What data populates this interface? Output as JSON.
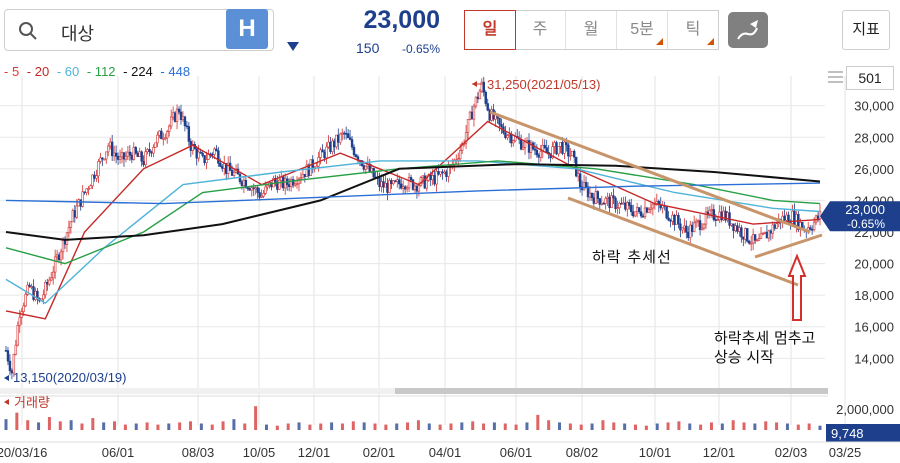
{
  "search": {
    "value": "대상",
    "badge": "H"
  },
  "quote": {
    "price": "23,000",
    "change": "150",
    "change_pct": "-0.65%"
  },
  "tabs": [
    {
      "label": "일",
      "active": true,
      "corner": false
    },
    {
      "label": "주",
      "active": false,
      "corner": false
    },
    {
      "label": "월",
      "active": false,
      "corner": false
    },
    {
      "label": "5분",
      "active": false,
      "corner": true
    },
    {
      "label": "틱",
      "active": false,
      "corner": true
    }
  ],
  "indicator_button": "지표",
  "count": "501",
  "legend": {
    "items": [
      {
        "label": "5",
        "color": "#e53935"
      },
      {
        "label": "20",
        "color": "#c62828"
      },
      {
        "label": "60",
        "color": "#4fb3d9"
      },
      {
        "label": "112",
        "color": "#27a046"
      },
      {
        "label": "224",
        "color": "#111111"
      },
      {
        "label": "448",
        "color": "#2a6fd6"
      }
    ]
  },
  "colors": {
    "up": "#d32f2f",
    "down": "#1d3f8c",
    "trendline": "#c8956a",
    "arrow": "#d32f2f"
  },
  "volume_label": "거래량",
  "chart_data": {
    "type": "candlestick",
    "x_ticks": [
      "20/03/16",
      "06/01",
      "08/03",
      "10/05",
      "12/01",
      "02/01",
      "04/01",
      "06/01",
      "08/02",
      "10/01",
      "12/01",
      "02/03",
      "03/25"
    ],
    "ylim": [
      12500,
      31500
    ],
    "y_ticks": [
      14000,
      16000,
      18000,
      20000,
      22000,
      24000,
      26000,
      28000,
      30000
    ],
    "y_tick_labels": [
      "14,000",
      "16,000",
      "18,000",
      "20,000",
      "22,000",
      "24,000",
      "26,000",
      "28,000",
      "30,000"
    ],
    "price_path": [
      [
        0,
        14500
      ],
      [
        3,
        13150
      ],
      [
        7,
        17000
      ],
      [
        12,
        18500
      ],
      [
        17,
        17500
      ],
      [
        22,
        19000
      ],
      [
        28,
        21000
      ],
      [
        34,
        23000
      ],
      [
        40,
        24500
      ],
      [
        46,
        26000
      ],
      [
        52,
        27500
      ],
      [
        58,
        26500
      ],
      [
        64,
        27000
      ],
      [
        70,
        26500
      ],
      [
        76,
        27800
      ],
      [
        82,
        28500
      ],
      [
        88,
        29800
      ],
      [
        94,
        27500
      ],
      [
        100,
        26500
      ],
      [
        106,
        27200
      ],
      [
        112,
        26000
      ],
      [
        118,
        25500
      ],
      [
        124,
        25000
      ],
      [
        130,
        24300
      ],
      [
        136,
        25200
      ],
      [
        142,
        25000
      ],
      [
        148,
        25500
      ],
      [
        154,
        26000
      ],
      [
        160,
        26800
      ],
      [
        166,
        27500
      ],
      [
        172,
        28200
      ],
      [
        178,
        27000
      ],
      [
        184,
        26000
      ],
      [
        190,
        25000
      ],
      [
        196,
        24800
      ],
      [
        202,
        25200
      ],
      [
        208,
        25000
      ],
      [
        214,
        25200
      ],
      [
        220,
        25500
      ],
      [
        226,
        26000
      ],
      [
        232,
        27500
      ],
      [
        238,
        30000
      ],
      [
        242,
        31250
      ],
      [
        246,
        29500
      ],
      [
        252,
        28500
      ],
      [
        258,
        28000
      ],
      [
        264,
        27500
      ],
      [
        270,
        27200
      ],
      [
        276,
        27000
      ],
      [
        282,
        27500
      ],
      [
        288,
        26800
      ],
      [
        292,
        25000
      ],
      [
        298,
        24300
      ],
      [
        304,
        24000
      ],
      [
        310,
        23800
      ],
      [
        316,
        23500
      ],
      [
        322,
        23200
      ],
      [
        328,
        23800
      ],
      [
        334,
        23500
      ],
      [
        340,
        22800
      ],
      [
        346,
        22000
      ],
      [
        352,
        22500
      ],
      [
        358,
        23000
      ],
      [
        364,
        23200
      ],
      [
        370,
        22500
      ],
      [
        376,
        21800
      ],
      [
        382,
        21200
      ],
      [
        388,
        22000
      ],
      [
        394,
        22800
      ],
      [
        400,
        23000
      ],
      [
        406,
        22200
      ],
      [
        410,
        22500
      ],
      [
        414,
        23000
      ]
    ],
    "ma_lines": [
      {
        "name": "20",
        "color": "#c62828",
        "points": [
          [
            0,
            17000
          ],
          [
            20,
            16500
          ],
          [
            40,
            22000
          ],
          [
            70,
            26000
          ],
          [
            95,
            27500
          ],
          [
            130,
            25000
          ],
          [
            170,
            27000
          ],
          [
            210,
            25000
          ],
          [
            245,
            29000
          ],
          [
            290,
            26000
          ],
          [
            330,
            23800
          ],
          [
            380,
            22500
          ],
          [
            414,
            22800
          ]
        ]
      },
      {
        "name": "60",
        "color": "#4fb3d9",
        "points": [
          [
            0,
            19000
          ],
          [
            20,
            17500
          ],
          [
            50,
            21000
          ],
          [
            90,
            25000
          ],
          [
            140,
            25800
          ],
          [
            190,
            26500
          ],
          [
            240,
            26500
          ],
          [
            290,
            26000
          ],
          [
            340,
            24500
          ],
          [
            390,
            23500
          ],
          [
            414,
            23300
          ]
        ]
      },
      {
        "name": "112",
        "color": "#27a046",
        "points": [
          [
            0,
            21000
          ],
          [
            30,
            20000
          ],
          [
            70,
            22000
          ],
          [
            100,
            24500
          ],
          [
            150,
            25300
          ],
          [
            200,
            26000
          ],
          [
            250,
            26500
          ],
          [
            300,
            26000
          ],
          [
            350,
            25000
          ],
          [
            390,
            24000
          ],
          [
            414,
            23800
          ]
        ]
      },
      {
        "name": "224",
        "color": "#111111",
        "points": [
          [
            0,
            22000
          ],
          [
            30,
            21500
          ],
          [
            70,
            21800
          ],
          [
            110,
            22500
          ],
          [
            160,
            24000
          ],
          [
            200,
            26000
          ],
          [
            260,
            26300
          ],
          [
            310,
            26200
          ],
          [
            360,
            25800
          ],
          [
            414,
            25200
          ]
        ]
      },
      {
        "name": "448",
        "color": "#2a6fd6",
        "points": [
          [
            0,
            24000
          ],
          [
            80,
            23800
          ],
          [
            160,
            24200
          ],
          [
            240,
            24600
          ],
          [
            320,
            24900
          ],
          [
            414,
            25100
          ]
        ]
      }
    ],
    "volume_values": [
      1000,
      1600,
      900,
      700,
      1200,
      800,
      900,
      600,
      1100,
      700,
      800,
      500,
      600,
      700,
      500,
      600,
      700,
      800,
      600,
      500,
      800,
      1000,
      600,
      2200,
      500,
      400,
      600,
      700,
      500,
      600,
      700,
      600,
      800,
      700,
      600,
      500,
      600,
      700,
      900,
      600,
      500,
      600,
      700,
      800,
      600,
      700,
      600,
      500,
      700,
      1400,
      900,
      700,
      600,
      500,
      600,
      900,
      700,
      600,
      500,
      400,
      600,
      700,
      800,
      600,
      500,
      700,
      600,
      900,
      700,
      600,
      800,
      700,
      600,
      500,
      600,
      400
    ],
    "volume_last": "9,748",
    "volume_tick": "2,000,000",
    "annotations": {
      "high": "31,250(2021/05/13)",
      "low": "13,150(2020/03/19)",
      "downtrend": "하락 추세선",
      "reversal_line1": "하락추세 멈추고",
      "reversal_line2": "상승 시작"
    }
  }
}
